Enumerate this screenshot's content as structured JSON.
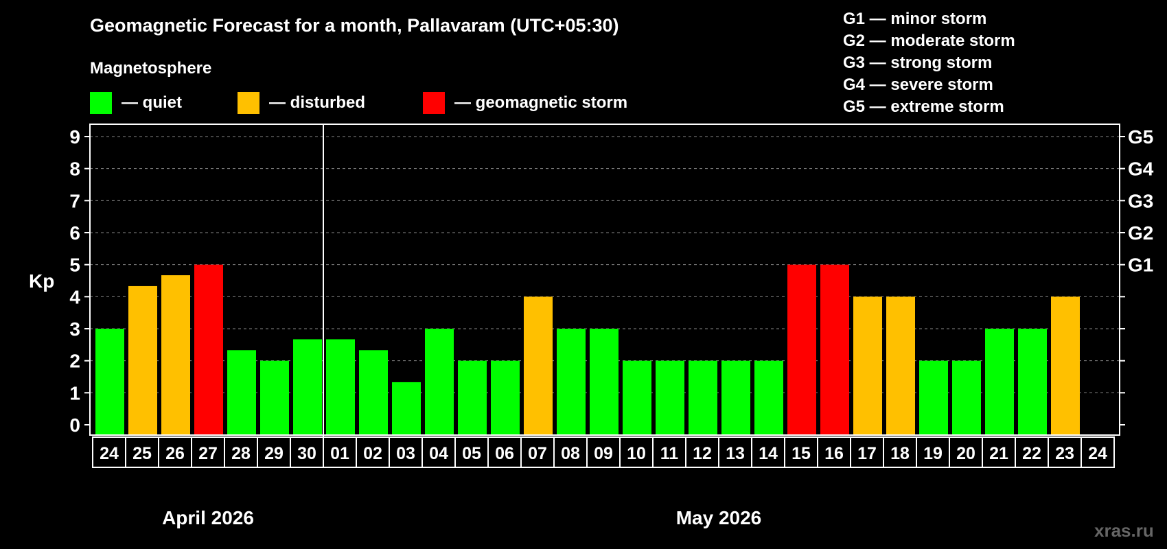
{
  "chart_data": {
    "type": "bar",
    "title": "Geomagnetic Forecast for a month, Pallavaram (UTC+05:30)",
    "subtitle": "Magnetosphere",
    "legend": [
      {
        "label": "— quiet",
        "color": "#00ff00"
      },
      {
        "label": "— disturbed",
        "color": "#ffc000"
      },
      {
        "label": "— geomagnetic storm",
        "color": "#ff0000"
      }
    ],
    "storm_scale": [
      "G1 — minor storm",
      "G2 — moderate storm",
      "G3 — strong storm",
      "G4 — severe storm",
      "G5 — extreme storm"
    ],
    "ylabel": "Kp",
    "ylim": [
      0,
      9
    ],
    "yticks": [
      "0",
      "1",
      "2",
      "3",
      "4",
      "5",
      "6",
      "7",
      "8",
      "9"
    ],
    "right_ticks": [
      {
        "value": 5,
        "label": "G1"
      },
      {
        "value": 6,
        "label": "G2"
      },
      {
        "value": 7,
        "label": "G3"
      },
      {
        "value": 8,
        "label": "G4"
      },
      {
        "value": 9,
        "label": "G5"
      }
    ],
    "categories": [
      "24",
      "25",
      "26",
      "27",
      "28",
      "29",
      "30",
      "01",
      "02",
      "03",
      "04",
      "05",
      "06",
      "07",
      "08",
      "09",
      "10",
      "11",
      "12",
      "13",
      "14",
      "15",
      "16",
      "17",
      "18",
      "19",
      "20",
      "21",
      "22",
      "23",
      "24"
    ],
    "values": [
      3,
      4.33,
      4.67,
      5,
      2.33,
      2,
      2.67,
      2.67,
      2.33,
      1.33,
      3,
      2,
      2,
      4,
      3,
      3,
      2,
      2,
      2,
      2,
      2,
      5,
      5,
      4,
      4,
      2,
      2,
      3,
      3,
      4,
      null
    ],
    "status": [
      "quiet",
      "disturbed",
      "disturbed",
      "storm",
      "quiet",
      "quiet",
      "quiet",
      "quiet",
      "quiet",
      "quiet",
      "quiet",
      "quiet",
      "quiet",
      "disturbed",
      "quiet",
      "quiet",
      "quiet",
      "quiet",
      "quiet",
      "quiet",
      "quiet",
      "storm",
      "storm",
      "disturbed",
      "disturbed",
      "quiet",
      "quiet",
      "quiet",
      "quiet",
      "disturbed",
      null
    ],
    "status_colors": {
      "quiet": "#00ff00",
      "disturbed": "#ffc000",
      "storm": "#ff0000"
    },
    "months": [
      {
        "label": "April 2026",
        "span": 7
      },
      {
        "label": "May 2026",
        "span": 24
      }
    ],
    "grid": true
  },
  "watermark": "xras.ru"
}
